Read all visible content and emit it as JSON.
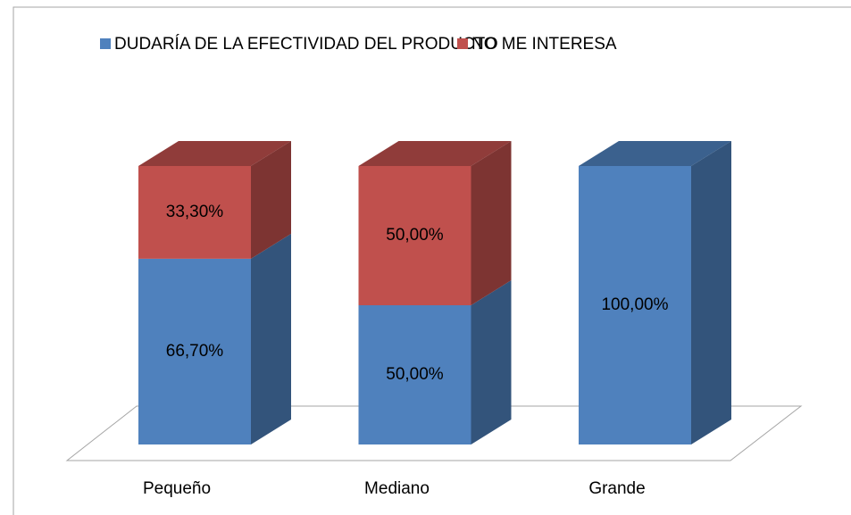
{
  "chart_data": {
    "type": "bar3d_stacked",
    "categories": [
      "Pequeño",
      "Mediano",
      "Grande"
    ],
    "series": [
      {
        "name": "DUDARÍA DE LA EFECTIVIDAD DEL PRODUCTO",
        "color": "#4f81bd",
        "values": [
          66.7,
          50,
          100
        ],
        "value_labels": [
          "66,70%",
          "50,00%",
          "100,00%"
        ]
      },
      {
        "name": "NO ME INTERESA",
        "color": "#c0504d",
        "values": [
          33.3,
          50,
          0
        ],
        "value_labels": [
          "33,30%",
          "50,00%",
          null
        ]
      }
    ],
    "ylim": [
      0,
      100
    ]
  }
}
